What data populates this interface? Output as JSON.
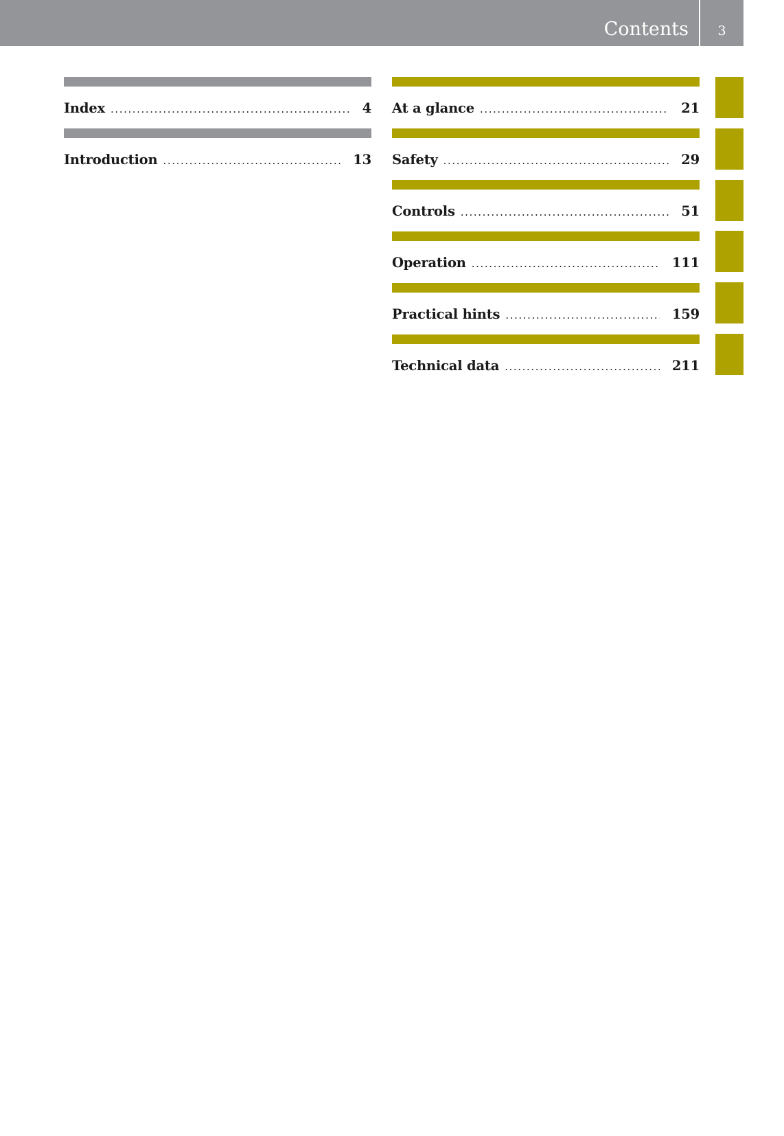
{
  "header": {
    "title": "Contents",
    "page_number": "3"
  },
  "colors": {
    "header_gray": "#949598",
    "accent_olive": "#ada200"
  },
  "left_column": [
    {
      "label": "Index",
      "page": "4"
    },
    {
      "label": "Introduction",
      "page": "13"
    }
  ],
  "right_column": [
    {
      "label": "At a glance",
      "page": "21"
    },
    {
      "label": "Safety",
      "page": "29"
    },
    {
      "label": "Controls",
      "page": "51"
    },
    {
      "label": "Operation",
      "page": "111"
    },
    {
      "label": "Practical hints",
      "page": "159"
    },
    {
      "label": "Technical data",
      "page": "211"
    }
  ],
  "leader": "...................................................................................."
}
